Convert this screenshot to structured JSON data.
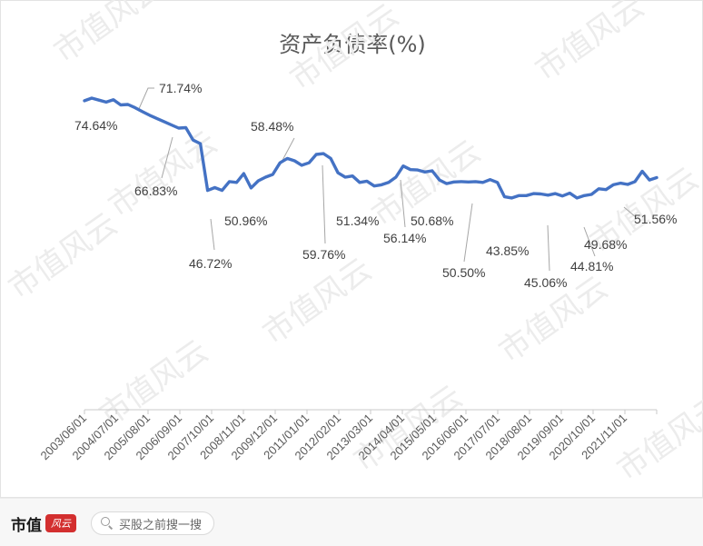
{
  "chart_data": {
    "type": "line",
    "title": "资产负债率(%)",
    "x_ticks": [
      "2003/06/01",
      "2004/07/01",
      "2005/08/01",
      "2006/09/01",
      "2007/10/01",
      "2008/11/01",
      "2009/12/01",
      "2011/01/01",
      "2012/02/01",
      "2013/03/01",
      "2014/04/01",
      "2015/05/01",
      "2016/06/01",
      "2017/07/01",
      "2018/08/01",
      "2019/09/01",
      "2020/10/01",
      "2021/11/01"
    ],
    "series": [
      {
        "color": "#4472c4",
        "values": [
          74.64,
          75.3,
          74.8,
          74.3,
          74.9,
          73.6,
          73.7,
          72.9,
          71.74,
          71.0,
          70.2,
          69.4,
          68.6,
          67.8,
          66.83,
          66.95,
          64.1,
          62.0,
          60.8,
          47.9,
          48.4,
          47.6,
          46.72,
          51.5,
          51.3,
          53.8,
          50.2,
          52.6,
          53.6,
          54.6,
          55.2,
          58.3,
          59.3,
          58.48,
          57.8,
          56.8,
          57.4,
          59.9,
          60.2,
          59.76,
          58.9,
          55.2,
          54.1,
          54.5,
          52.7,
          53.1,
          52.0,
          52.7,
          53.3,
          54.5,
          57.3,
          56.14,
          55.9,
          55.4,
          55.7,
          53.4,
          52.5,
          52.9,
          52.9,
          52.9,
          53.3,
          52.8,
          52.9,
          52.6,
          51.34,
          52.0,
          51.0,
          51.3,
          51.6,
          52.2,
          53.1,
          54.0,
          51.4,
          50.5,
          51.3,
          51.6,
          51.8,
          51.7,
          51.6,
          50.68,
          51.7,
          51.9,
          51.9,
          51.7,
          52.0,
          52.2,
          52.0,
          52.0,
          51.8,
          52.4,
          52.5,
          52.3,
          53.1,
          52.4,
          51.1,
          49.0,
          48.7,
          47.2,
          46.6,
          45.4,
          45.1,
          44.8,
          44.7,
          44.6,
          45.0,
          44.81,
          45.1,
          45.5,
          45.8,
          46.7,
          46.9,
          47.4,
          48.0,
          48.6,
          49.68,
          50.1,
          49.9,
          50.0,
          50.4,
          52.1,
          54.0,
          55.9,
          51.56,
          52.5
        ],
        "draw_values": [
          74.64,
          75.3,
          74.8,
          74.3,
          74.9,
          73.6,
          73.7,
          72.9,
          71.9,
          71.0,
          70.2,
          69.4,
          68.6,
          67.8,
          67.9,
          64.8,
          63.9,
          52.2,
          52.9,
          52.2,
          54.4,
          54.2,
          56.4,
          52.8,
          54.6,
          55.5,
          56.2,
          59.1,
          60.2,
          59.6,
          58.5,
          59.1,
          61.2,
          61.4,
          60.2,
          56.6,
          55.5,
          55.8,
          54.2,
          54.5,
          53.3,
          53.6,
          54.2,
          55.5,
          58.3,
          57.4,
          57.3,
          56.8,
          57.1,
          54.8,
          53.9,
          54.3,
          54.4,
          54.3,
          54.4,
          54.2,
          54.9,
          54.2,
          50.6,
          50.3,
          50.9,
          50.9,
          51.4,
          51.3,
          51.0,
          51.4,
          50.8,
          51.5,
          50.3,
          50.9,
          51.2,
          52.6,
          52.4,
          53.6,
          54.0,
          53.7,
          54.4,
          57.0,
          54.8,
          55.4
        ]
      }
    ],
    "annotations": [
      {
        "label": "74.64%"
      },
      {
        "label": "71.74%"
      },
      {
        "label": "66.83%"
      },
      {
        "label": "46.72%"
      },
      {
        "label": "50.96%"
      },
      {
        "label": "58.48%"
      },
      {
        "label": "59.76%"
      },
      {
        "label": "51.34%"
      },
      {
        "label": "56.14%"
      },
      {
        "label": "50.68%"
      },
      {
        "label": "50.50%"
      },
      {
        "label": "43.85%"
      },
      {
        "label": "45.06%"
      },
      {
        "label": "44.81%"
      },
      {
        "label": "49.68%"
      },
      {
        "label": "51.56%"
      }
    ],
    "grid": false,
    "legend": "none"
  },
  "watermark": "市值风云",
  "footer": {
    "brand": "市值",
    "brand_logo_text": "风云",
    "search_placeholder": "买股之前搜一搜",
    "search_icon": "search-icon"
  }
}
